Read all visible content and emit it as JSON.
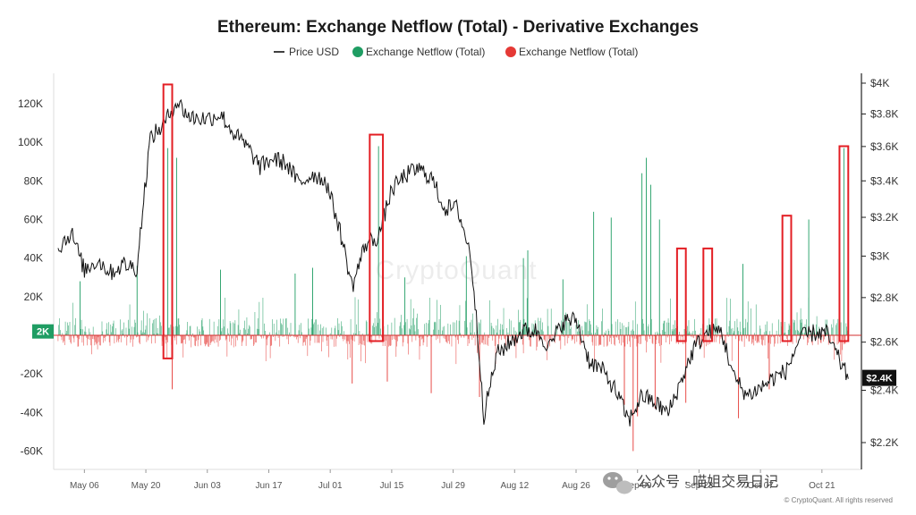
{
  "chart_data": {
    "type": "line",
    "title": "Ethereum: Exchange Netflow (Total) - Derivative Exchanges",
    "legend": {
      "position": "top-center",
      "entries": [
        {
          "name": "Price USD",
          "color": "#000000",
          "marker": "line"
        },
        {
          "name": "Exchange Netflow (Total)",
          "color": "#1f9d63",
          "marker": "dot"
        },
        {
          "name": "Exchange Netflow (Total)",
          "color": "#e53935",
          "marker": "dot"
        }
      ]
    },
    "x_ticks": [
      "May 06",
      "May 20",
      "Jun 03",
      "Jun 17",
      "Jul 01",
      "Jul 15",
      "Jul 29",
      "Aug 12",
      "Aug 26",
      "Sep 09",
      "Sep 23",
      "Oct 07",
      "Oct 21"
    ],
    "left_axis": {
      "ticks": [
        {
          "v": 120000,
          "label": "120K"
        },
        {
          "v": 100000,
          "label": "100K"
        },
        {
          "v": 80000,
          "label": "80K"
        },
        {
          "v": 60000,
          "label": "60K"
        },
        {
          "v": 40000,
          "label": "40K"
        },
        {
          "v": 20000,
          "label": "20K"
        },
        {
          "v": -20000,
          "label": "-20K"
        },
        {
          "v": -40000,
          "label": "-40K"
        },
        {
          "v": -60000,
          "label": "-60K"
        }
      ],
      "current_badge": "2K",
      "current_value": 2000
    },
    "right_axis": {
      "scale": "log",
      "ticks": [
        {
          "v": 4000,
          "label": "$4K"
        },
        {
          "v": 3800,
          "label": "$3.8K"
        },
        {
          "v": 3600,
          "label": "$3.6K"
        },
        {
          "v": 3400,
          "label": "$3.4K"
        },
        {
          "v": 3200,
          "label": "$3.2K"
        },
        {
          "v": 3000,
          "label": "$3K"
        },
        {
          "v": 2800,
          "label": "$2.8K"
        },
        {
          "v": 2600,
          "label": "$2.6K"
        },
        {
          "v": 2400,
          "label": "$2.4K"
        },
        {
          "v": 2200,
          "label": "$2.2K"
        }
      ],
      "current_badge": "$2.4K",
      "current_value": 2450
    },
    "price_series": {
      "name": "Price USD",
      "points": [
        [
          "2024-04-30",
          3040
        ],
        [
          "2024-05-03",
          3120
        ],
        [
          "2024-05-06",
          2930
        ],
        [
          "2024-05-09",
          2980
        ],
        [
          "2024-05-12",
          2920
        ],
        [
          "2024-05-15",
          2960
        ],
        [
          "2024-05-18",
          2940
        ],
        [
          "2024-05-21",
          3650
        ],
        [
          "2024-05-24",
          3730
        ],
        [
          "2024-05-27",
          3880
        ],
        [
          "2024-05-30",
          3780
        ],
        [
          "2024-06-03",
          3770
        ],
        [
          "2024-06-06",
          3800
        ],
        [
          "2024-06-09",
          3680
        ],
        [
          "2024-06-12",
          3600
        ],
        [
          "2024-06-15",
          3480
        ],
        [
          "2024-06-18",
          3530
        ],
        [
          "2024-06-21",
          3500
        ],
        [
          "2024-06-24",
          3380
        ],
        [
          "2024-06-27",
          3440
        ],
        [
          "2024-06-30",
          3400
        ],
        [
          "2024-07-03",
          3150
        ],
        [
          "2024-07-06",
          2850
        ],
        [
          "2024-07-09",
          3060
        ],
        [
          "2024-07-12",
          3100
        ],
        [
          "2024-07-15",
          3350
        ],
        [
          "2024-07-18",
          3430
        ],
        [
          "2024-07-21",
          3470
        ],
        [
          "2024-07-24",
          3420
        ],
        [
          "2024-07-27",
          3250
        ],
        [
          "2024-07-30",
          3250
        ],
        [
          "2024-08-02",
          3000
        ],
        [
          "2024-08-05",
          2300
        ],
        [
          "2024-08-08",
          2550
        ],
        [
          "2024-08-11",
          2600
        ],
        [
          "2024-08-14",
          2650
        ],
        [
          "2024-08-17",
          2650
        ],
        [
          "2024-08-20",
          2580
        ],
        [
          "2024-08-23",
          2690
        ],
        [
          "2024-08-26",
          2700
        ],
        [
          "2024-08-29",
          2520
        ],
        [
          "2024-09-01",
          2480
        ],
        [
          "2024-09-04",
          2400
        ],
        [
          "2024-09-07",
          2280
        ],
        [
          "2024-09-10",
          2380
        ],
        [
          "2024-09-13",
          2350
        ],
        [
          "2024-09-16",
          2310
        ],
        [
          "2024-09-19",
          2440
        ],
        [
          "2024-09-22",
          2580
        ],
        [
          "2024-09-25",
          2640
        ],
        [
          "2024-09-28",
          2650
        ],
        [
          "2024-10-01",
          2450
        ],
        [
          "2024-10-04",
          2380
        ],
        [
          "2024-10-07",
          2410
        ],
        [
          "2024-10-10",
          2450
        ],
        [
          "2024-10-13",
          2480
        ],
        [
          "2024-10-16",
          2620
        ],
        [
          "2024-10-19",
          2640
        ],
        [
          "2024-10-22",
          2640
        ],
        [
          "2024-10-25",
          2520
        ],
        [
          "2024-10-27",
          2450
        ]
      ]
    },
    "netflow_spikes": [
      [
        "2024-05-05",
        28000
      ],
      [
        "2024-05-18",
        36000
      ],
      [
        "2024-05-25",
        97000
      ],
      [
        "2024-05-26",
        -28000
      ],
      [
        "2024-05-27",
        92000
      ],
      [
        "2024-06-06",
        34000
      ],
      [
        "2024-06-23",
        32000
      ],
      [
        "2024-06-27",
        35000
      ],
      [
        "2024-07-06",
        -25000
      ],
      [
        "2024-07-10",
        102000
      ],
      [
        "2024-07-12",
        98000
      ],
      [
        "2024-07-14",
        -24000
      ],
      [
        "2024-07-18",
        30000
      ],
      [
        "2024-07-24",
        -30000
      ],
      [
        "2024-08-01",
        41000
      ],
      [
        "2024-08-04",
        -32000
      ],
      [
        "2024-08-14",
        40000
      ],
      [
        "2024-08-15",
        44000
      ],
      [
        "2024-08-23",
        29000
      ],
      [
        "2024-08-30",
        64000
      ],
      [
        "2024-09-03",
        61000
      ],
      [
        "2024-09-06",
        -36000
      ],
      [
        "2024-09-08",
        -60000
      ],
      [
        "2024-09-09",
        -42000
      ],
      [
        "2024-09-10",
        84000
      ],
      [
        "2024-09-11",
        92000
      ],
      [
        "2024-09-12",
        78000
      ],
      [
        "2024-09-13",
        -38000
      ],
      [
        "2024-09-14",
        60000
      ],
      [
        "2024-09-20",
        -35000
      ],
      [
        "2024-09-26",
        38000
      ],
      [
        "2024-10-02",
        -43000
      ],
      [
        "2024-10-03",
        37000
      ],
      [
        "2024-10-09",
        -28000
      ],
      [
        "2024-10-18",
        60000
      ],
      [
        "2024-10-26",
        97000
      ]
    ],
    "netflow_typical_range": [
      -6000,
      9000
    ],
    "highlight_boxes": [
      [
        "2024-05-24",
        "2024-05-26",
        130000,
        -12000
      ],
      [
        "2024-07-10",
        "2024-07-13",
        104000,
        -3000
      ],
      [
        "2024-09-18",
        "2024-09-20",
        45000,
        -3000
      ],
      [
        "2024-09-24",
        "2024-09-26",
        45000,
        -3000
      ],
      [
        "2024-10-12",
        "2024-10-14",
        62000,
        -3000
      ],
      [
        "2024-10-25",
        "2024-10-27",
        98000,
        -3000
      ]
    ]
  },
  "watermark": "CryptoQuant",
  "copyright": "© CryptoQuant. All rights reserved",
  "wechat_label": "公众号 · 喵姐交易日记"
}
